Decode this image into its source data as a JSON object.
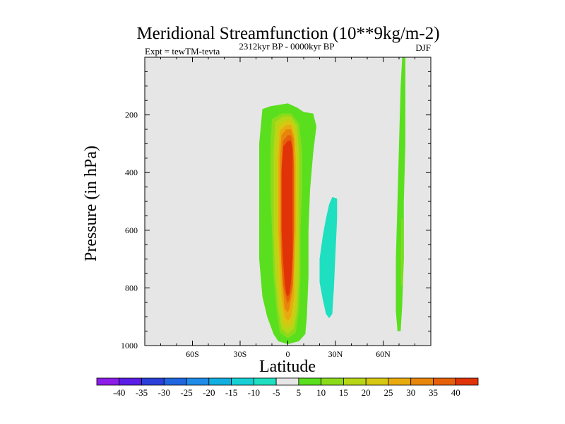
{
  "chart_data": {
    "type": "contour",
    "title": "Meridional Streamfunction (10**9kg/m-2)",
    "subtitle_left": "Expt = tewTM-tevta",
    "subtitle_center": "2312kyr BP - 0000kyr BP",
    "subtitle_right": "DJF",
    "xlabel": "Latitude",
    "ylabel": "Pressure (in hPa)",
    "xlim": [
      -90,
      90
    ],
    "ylim": [
      1000,
      0
    ],
    "x_ticks": [
      {
        "value": -60,
        "label": "60S"
      },
      {
        "value": -30,
        "label": "30S"
      },
      {
        "value": 0,
        "label": "0"
      },
      {
        "value": 30,
        "label": "30N"
      },
      {
        "value": 60,
        "label": "60N"
      }
    ],
    "y_ticks": [
      {
        "value": 200,
        "label": "200"
      },
      {
        "value": 400,
        "label": "400"
      },
      {
        "value": 600,
        "label": "600"
      },
      {
        "value": 800,
        "label": "800"
      },
      {
        "value": 1000,
        "label": "1000"
      }
    ],
    "background_color": "#e6e6e6",
    "levels": [
      -40,
      -35,
      -30,
      -25,
      -20,
      -15,
      -10,
      -5,
      5,
      10,
      15,
      20,
      25,
      30,
      35,
      40
    ],
    "level_labels": [
      "-40",
      "-35",
      "-30",
      "-25",
      "-20",
      "-15",
      "-10",
      "-5",
      "5",
      "10",
      "15",
      "20",
      "25",
      "30",
      "35",
      "40"
    ],
    "colors": [
      "#8c1ce8",
      "#5a1ee6",
      "#2b3fd9",
      "#1f66e0",
      "#1e8ce8",
      "#12aee0",
      "#16d0d6",
      "#1ee0c0",
      "#e6e6e6",
      "#5adf1e",
      "#8cdb1a",
      "#b6d616",
      "#d6c812",
      "#e8aa0e",
      "#e8860c",
      "#e6600a",
      "#e03408"
    ],
    "features": [
      {
        "name": "tropical-positive-cell",
        "color_index": 9,
        "points": [
          [
            -16,
            180
          ],
          [
            -11,
            170
          ],
          [
            0,
            160
          ],
          [
            6,
            175
          ],
          [
            10,
            190
          ],
          [
            16,
            195
          ],
          [
            18,
            240
          ],
          [
            16,
            330
          ],
          [
            14,
            460
          ],
          [
            13,
            600
          ],
          [
            13,
            760
          ],
          [
            12,
            900
          ],
          [
            11,
            960
          ],
          [
            7,
            985
          ],
          [
            0,
            995
          ],
          [
            -6,
            985
          ],
          [
            -9,
            960
          ],
          [
            -13,
            900
          ],
          [
            -16,
            830
          ],
          [
            -18,
            700
          ],
          [
            -18,
            500
          ],
          [
            -18,
            300
          ]
        ]
      },
      {
        "name": "tropical-positive-cell",
        "color_index": 10,
        "points": [
          [
            -10,
            215
          ],
          [
            -4,
            195
          ],
          [
            2,
            195
          ],
          [
            7,
            230
          ],
          [
            9,
            320
          ],
          [
            9,
            460
          ],
          [
            8,
            600
          ],
          [
            8,
            760
          ],
          [
            7,
            880
          ],
          [
            5,
            955
          ],
          [
            0,
            975
          ],
          [
            -5,
            955
          ],
          [
            -7,
            880
          ],
          [
            -9,
            760
          ],
          [
            -10,
            600
          ],
          [
            -11,
            460
          ],
          [
            -11,
            320
          ]
        ]
      },
      {
        "name": "tropical-positive-cell",
        "color_index": 11,
        "points": [
          [
            -8,
            225
          ],
          [
            -3,
            205
          ],
          [
            2,
            205
          ],
          [
            6,
            240
          ],
          [
            7,
            330
          ],
          [
            7,
            460
          ],
          [
            7,
            600
          ],
          [
            7,
            750
          ],
          [
            6,
            870
          ],
          [
            4,
            940
          ],
          [
            0,
            960
          ],
          [
            -4,
            940
          ],
          [
            -6,
            870
          ],
          [
            -8,
            750
          ],
          [
            -9,
            600
          ],
          [
            -9,
            460
          ],
          [
            -9,
            330
          ]
        ]
      },
      {
        "name": "tropical-positive-cell",
        "color_index": 12,
        "points": [
          [
            -6,
            240
          ],
          [
            -2,
            220
          ],
          [
            2,
            220
          ],
          [
            5,
            255
          ],
          [
            6,
            340
          ],
          [
            6,
            470
          ],
          [
            6,
            600
          ],
          [
            5,
            740
          ],
          [
            5,
            850
          ],
          [
            3,
            920
          ],
          [
            0,
            940
          ],
          [
            -3,
            920
          ],
          [
            -5,
            850
          ],
          [
            -6,
            740
          ],
          [
            -7,
            600
          ],
          [
            -7,
            470
          ],
          [
            -7,
            340
          ]
        ]
      },
      {
        "name": "tropical-positive-cell",
        "color_index": 13,
        "points": [
          [
            -5,
            255
          ],
          [
            -1,
            235
          ],
          [
            2,
            235
          ],
          [
            4,
            270
          ],
          [
            5,
            350
          ],
          [
            5,
            470
          ],
          [
            5,
            600
          ],
          [
            4,
            730
          ],
          [
            4,
            830
          ],
          [
            2,
            900
          ],
          [
            0,
            915
          ],
          [
            -2,
            900
          ],
          [
            -4,
            830
          ],
          [
            -5,
            730
          ],
          [
            -6,
            600
          ],
          [
            -6,
            470
          ],
          [
            -6,
            350
          ]
        ]
      },
      {
        "name": "tropical-positive-cell",
        "color_index": 14,
        "points": [
          [
            -4,
            270
          ],
          [
            -1,
            250
          ],
          [
            2,
            250
          ],
          [
            4,
            285
          ],
          [
            4,
            360
          ],
          [
            4,
            480
          ],
          [
            4,
            600
          ],
          [
            4,
            720
          ],
          [
            3,
            810
          ],
          [
            1,
            870
          ],
          [
            0,
            885
          ],
          [
            -2,
            870
          ],
          [
            -3,
            810
          ],
          [
            -4,
            720
          ],
          [
            -5,
            600
          ],
          [
            -5,
            480
          ],
          [
            -5,
            360
          ]
        ]
      },
      {
        "name": "tropical-positive-cell",
        "color_index": 15,
        "points": [
          [
            -3,
            290
          ],
          [
            0,
            270
          ],
          [
            2,
            270
          ],
          [
            3,
            300
          ],
          [
            4,
            380
          ],
          [
            4,
            490
          ],
          [
            4,
            600
          ],
          [
            3,
            710
          ],
          [
            3,
            790
          ],
          [
            1,
            840
          ],
          [
            0,
            855
          ],
          [
            -1,
            840
          ],
          [
            -3,
            790
          ],
          [
            -4,
            710
          ],
          [
            -4,
            600
          ],
          [
            -4,
            490
          ],
          [
            -4,
            380
          ]
        ]
      },
      {
        "name": "tropical-positive-cell",
        "color_index": 16,
        "points": [
          [
            -3,
            310
          ],
          [
            0,
            290
          ],
          [
            2,
            290
          ],
          [
            3,
            320
          ],
          [
            3,
            400
          ],
          [
            3,
            500
          ],
          [
            3,
            600
          ],
          [
            3,
            700
          ],
          [
            2,
            780
          ],
          [
            1,
            820
          ],
          [
            0,
            830
          ],
          [
            -1,
            820
          ],
          [
            -2,
            780
          ],
          [
            -3,
            700
          ],
          [
            -4,
            600
          ],
          [
            -4,
            500
          ],
          [
            -4,
            400
          ]
        ]
      },
      {
        "name": "subtropical-negative-cell",
        "color_index": 7,
        "points": [
          [
            28,
            485
          ],
          [
            31,
            490
          ],
          [
            31,
            560
          ],
          [
            30,
            680
          ],
          [
            29,
            800
          ],
          [
            28,
            890
          ],
          [
            26,
            905
          ],
          [
            24,
            890
          ],
          [
            22,
            840
          ],
          [
            20,
            780
          ],
          [
            20,
            700
          ],
          [
            22,
            620
          ],
          [
            24,
            560
          ],
          [
            26,
            510
          ]
        ]
      },
      {
        "name": "high-latitude-positive-band",
        "color_index": 9,
        "points": [
          [
            72,
            0
          ],
          [
            74,
            0
          ],
          [
            74,
            100
          ],
          [
            74,
            300
          ],
          [
            73,
            500
          ],
          [
            73,
            700
          ],
          [
            72,
            860
          ],
          [
            71,
            950
          ],
          [
            69,
            950
          ],
          [
            68,
            880
          ],
          [
            68,
            700
          ],
          [
            69,
            500
          ],
          [
            70,
            300
          ],
          [
            71,
            100
          ]
        ]
      },
      {
        "name": "high-latitude-positive-band",
        "color_index": 10,
        "points": [
          [
            71.5,
            560
          ],
          [
            72.3,
            560
          ],
          [
            72.5,
            700
          ],
          [
            72.1,
            790
          ],
          [
            71.3,
            790
          ],
          [
            71.2,
            700
          ]
        ]
      }
    ]
  }
}
